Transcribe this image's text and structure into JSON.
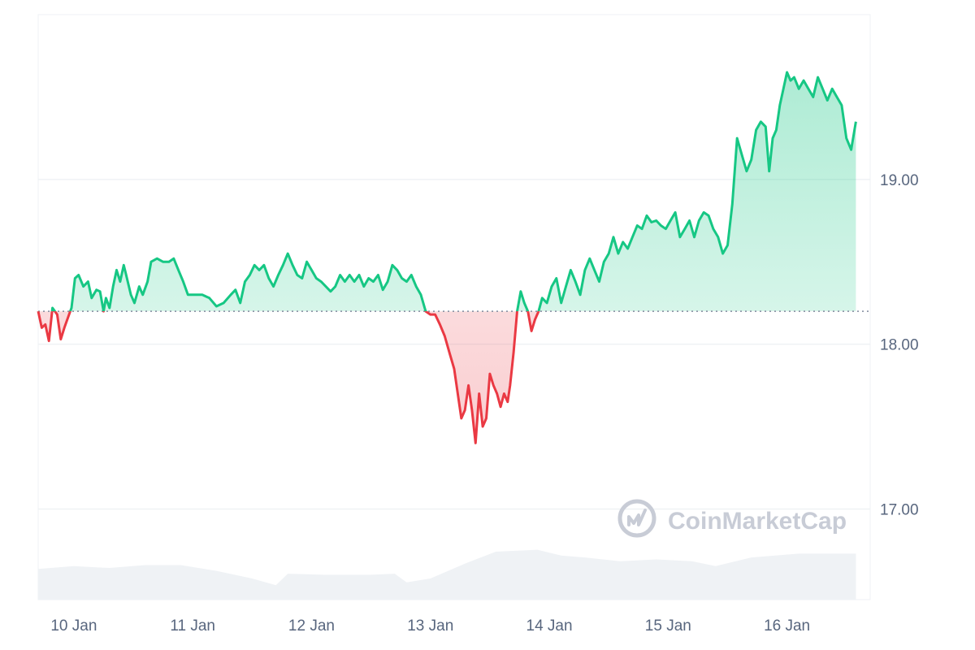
{
  "chart_data": {
    "type": "line",
    "title": "",
    "xlabel": "",
    "ylabel": "",
    "baseline": 18.2,
    "ylim": [
      16.45,
      20.0
    ],
    "xlim": [
      0,
      7.0
    ],
    "grid": true,
    "y_ticks": [
      {
        "value": 17.0,
        "label": "17.00"
      },
      {
        "value": 18.0,
        "label": "18.00"
      },
      {
        "value": 19.0,
        "label": "19.00"
      }
    ],
    "x_ticks": [
      {
        "value": 0.3,
        "label": "10 Jan"
      },
      {
        "value": 1.3,
        "label": "11 Jan"
      },
      {
        "value": 2.3,
        "label": "12 Jan"
      },
      {
        "value": 3.3,
        "label": "13 Jan"
      },
      {
        "value": 4.3,
        "label": "14 Jan"
      },
      {
        "value": 5.3,
        "label": "15 Jan"
      },
      {
        "value": 6.3,
        "label": "16 Jan"
      }
    ],
    "colors": {
      "up": "#16c784",
      "down": "#ea3943",
      "grid": "#eff2f5",
      "baseline": "#808a9d",
      "volume": "#eff2f5"
    },
    "series": [
      {
        "points": [
          [
            0.0,
            18.2
          ],
          [
            0.03,
            18.1
          ],
          [
            0.06,
            18.12
          ],
          [
            0.09,
            18.02
          ],
          [
            0.12,
            18.22
          ],
          [
            0.16,
            18.18
          ],
          [
            0.19,
            18.03
          ],
          [
            0.22,
            18.1
          ],
          [
            0.26,
            18.18
          ],
          [
            0.28,
            18.22
          ],
          [
            0.31,
            18.4
          ],
          [
            0.34,
            18.42
          ],
          [
            0.38,
            18.35
          ],
          [
            0.42,
            18.38
          ],
          [
            0.45,
            18.28
          ],
          [
            0.49,
            18.33
          ],
          [
            0.52,
            18.32
          ],
          [
            0.55,
            18.2
          ],
          [
            0.57,
            18.28
          ],
          [
            0.6,
            18.22
          ],
          [
            0.63,
            18.35
          ],
          [
            0.66,
            18.45
          ],
          [
            0.69,
            18.38
          ],
          [
            0.72,
            18.48
          ],
          [
            0.74,
            18.42
          ],
          [
            0.78,
            18.3
          ],
          [
            0.81,
            18.25
          ],
          [
            0.85,
            18.35
          ],
          [
            0.88,
            18.3
          ],
          [
            0.92,
            18.38
          ],
          [
            0.95,
            18.5
          ],
          [
            1.0,
            18.52
          ],
          [
            1.05,
            18.5
          ],
          [
            1.1,
            18.5
          ],
          [
            1.14,
            18.52
          ],
          [
            1.18,
            18.45
          ],
          [
            1.22,
            18.38
          ],
          [
            1.26,
            18.3
          ],
          [
            1.32,
            18.3
          ],
          [
            1.38,
            18.3
          ],
          [
            1.44,
            18.28
          ],
          [
            1.5,
            18.23
          ],
          [
            1.56,
            18.25
          ],
          [
            1.62,
            18.3
          ],
          [
            1.66,
            18.33
          ],
          [
            1.7,
            18.25
          ],
          [
            1.74,
            18.38
          ],
          [
            1.78,
            18.42
          ],
          [
            1.82,
            18.48
          ],
          [
            1.86,
            18.45
          ],
          [
            1.9,
            18.48
          ],
          [
            1.94,
            18.4
          ],
          [
            1.98,
            18.35
          ],
          [
            2.02,
            18.42
          ],
          [
            2.06,
            18.48
          ],
          [
            2.1,
            18.55
          ],
          [
            2.14,
            18.48
          ],
          [
            2.18,
            18.42
          ],
          [
            2.22,
            18.4
          ],
          [
            2.26,
            18.5
          ],
          [
            2.3,
            18.45
          ],
          [
            2.34,
            18.4
          ],
          [
            2.38,
            18.38
          ],
          [
            2.42,
            18.35
          ],
          [
            2.46,
            18.32
          ],
          [
            2.5,
            18.35
          ],
          [
            2.54,
            18.42
          ],
          [
            2.58,
            18.38
          ],
          [
            2.62,
            18.42
          ],
          [
            2.66,
            18.38
          ],
          [
            2.7,
            18.42
          ],
          [
            2.74,
            18.35
          ],
          [
            2.78,
            18.4
          ],
          [
            2.82,
            18.38
          ],
          [
            2.86,
            18.42
          ],
          [
            2.9,
            18.33
          ],
          [
            2.94,
            18.38
          ],
          [
            2.98,
            18.48
          ],
          [
            3.02,
            18.45
          ],
          [
            3.06,
            18.4
          ],
          [
            3.1,
            18.38
          ],
          [
            3.14,
            18.42
          ],
          [
            3.18,
            18.35
          ],
          [
            3.22,
            18.3
          ],
          [
            3.26,
            18.2
          ],
          [
            3.3,
            18.18
          ],
          [
            3.34,
            18.18
          ],
          [
            3.38,
            18.12
          ],
          [
            3.42,
            18.05
          ],
          [
            3.46,
            17.95
          ],
          [
            3.5,
            17.85
          ],
          [
            3.53,
            17.7
          ],
          [
            3.56,
            17.55
          ],
          [
            3.59,
            17.6
          ],
          [
            3.62,
            17.75
          ],
          [
            3.65,
            17.6
          ],
          [
            3.68,
            17.4
          ],
          [
            3.71,
            17.7
          ],
          [
            3.74,
            17.5
          ],
          [
            3.77,
            17.55
          ],
          [
            3.8,
            17.82
          ],
          [
            3.83,
            17.75
          ],
          [
            3.86,
            17.7
          ],
          [
            3.89,
            17.62
          ],
          [
            3.92,
            17.7
          ],
          [
            3.95,
            17.65
          ],
          [
            3.97,
            17.75
          ],
          [
            4.0,
            17.95
          ],
          [
            4.03,
            18.2
          ],
          [
            4.06,
            18.32
          ],
          [
            4.09,
            18.25
          ],
          [
            4.12,
            18.2
          ],
          [
            4.15,
            18.08
          ],
          [
            4.18,
            18.15
          ],
          [
            4.21,
            18.2
          ],
          [
            4.24,
            18.28
          ],
          [
            4.28,
            18.25
          ],
          [
            4.32,
            18.35
          ],
          [
            4.36,
            18.4
          ],
          [
            4.4,
            18.25
          ],
          [
            4.44,
            18.35
          ],
          [
            4.48,
            18.45
          ],
          [
            4.52,
            18.38
          ],
          [
            4.56,
            18.3
          ],
          [
            4.6,
            18.45
          ],
          [
            4.64,
            18.52
          ],
          [
            4.68,
            18.45
          ],
          [
            4.72,
            18.38
          ],
          [
            4.76,
            18.5
          ],
          [
            4.8,
            18.55
          ],
          [
            4.84,
            18.65
          ],
          [
            4.88,
            18.55
          ],
          [
            4.92,
            18.62
          ],
          [
            4.96,
            18.58
          ],
          [
            5.0,
            18.65
          ],
          [
            5.04,
            18.72
          ],
          [
            5.08,
            18.7
          ],
          [
            5.12,
            18.78
          ],
          [
            5.16,
            18.74
          ],
          [
            5.2,
            18.75
          ],
          [
            5.24,
            18.72
          ],
          [
            5.28,
            18.7
          ],
          [
            5.32,
            18.75
          ],
          [
            5.36,
            18.8
          ],
          [
            5.4,
            18.65
          ],
          [
            5.44,
            18.7
          ],
          [
            5.48,
            18.75
          ],
          [
            5.52,
            18.65
          ],
          [
            5.56,
            18.75
          ],
          [
            5.6,
            18.8
          ],
          [
            5.64,
            18.78
          ],
          [
            5.68,
            18.7
          ],
          [
            5.72,
            18.65
          ],
          [
            5.76,
            18.55
          ],
          [
            5.8,
            18.6
          ],
          [
            5.84,
            18.85
          ],
          [
            5.88,
            19.25
          ],
          [
            5.92,
            19.15
          ],
          [
            5.96,
            19.05
          ],
          [
            6.0,
            19.12
          ],
          [
            6.04,
            19.3
          ],
          [
            6.08,
            19.35
          ],
          [
            6.12,
            19.32
          ],
          [
            6.15,
            19.05
          ],
          [
            6.18,
            19.25
          ],
          [
            6.21,
            19.3
          ],
          [
            6.24,
            19.45
          ],
          [
            6.27,
            19.55
          ],
          [
            6.3,
            19.65
          ],
          [
            6.33,
            19.6
          ],
          [
            6.36,
            19.62
          ],
          [
            6.4,
            19.55
          ],
          [
            6.44,
            19.6
          ],
          [
            6.48,
            19.55
          ],
          [
            6.52,
            19.5
          ],
          [
            6.56,
            19.62
          ],
          [
            6.6,
            19.55
          ],
          [
            6.64,
            19.48
          ],
          [
            6.68,
            19.55
          ],
          [
            6.72,
            19.5
          ],
          [
            6.76,
            19.45
          ],
          [
            6.8,
            19.25
          ],
          [
            6.84,
            19.18
          ],
          [
            6.88,
            19.35
          ]
        ]
      }
    ],
    "volume": {
      "ylim": [
        0,
        1
      ],
      "values": [
        [
          0.0,
          0.32
        ],
        [
          0.3,
          0.35
        ],
        [
          0.6,
          0.33
        ],
        [
          0.9,
          0.36
        ],
        [
          1.2,
          0.36
        ],
        [
          1.5,
          0.3
        ],
        [
          1.8,
          0.22
        ],
        [
          2.0,
          0.15
        ],
        [
          2.1,
          0.27
        ],
        [
          2.4,
          0.26
        ],
        [
          2.8,
          0.26
        ],
        [
          3.0,
          0.27
        ],
        [
          3.1,
          0.18
        ],
        [
          3.3,
          0.22
        ],
        [
          3.6,
          0.38
        ],
        [
          3.85,
          0.5
        ],
        [
          4.2,
          0.52
        ],
        [
          4.4,
          0.46
        ],
        [
          4.6,
          0.44
        ],
        [
          4.9,
          0.4
        ],
        [
          5.2,
          0.42
        ],
        [
          5.5,
          0.4
        ],
        [
          5.7,
          0.35
        ],
        [
          6.0,
          0.44
        ],
        [
          6.4,
          0.48
        ],
        [
          6.88,
          0.48
        ]
      ]
    },
    "watermark": "CoinMarketCap"
  }
}
